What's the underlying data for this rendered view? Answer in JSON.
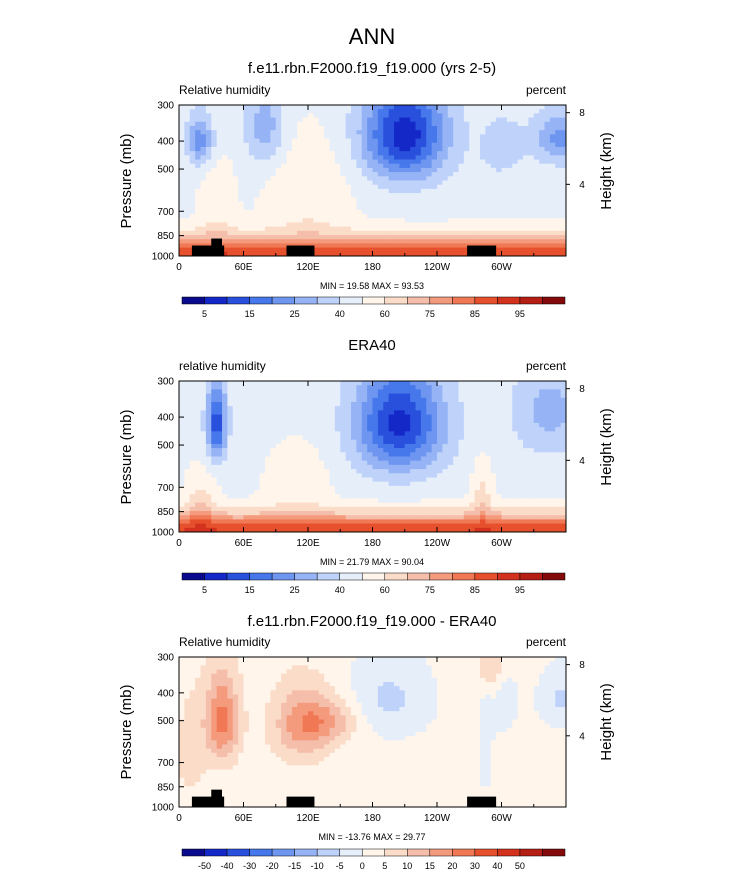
{
  "figure": {
    "title": "ANN"
  },
  "colormaps": {
    "absolute": {
      "colors": [
        "#0a0a8c",
        "#1428c8",
        "#2850dc",
        "#4678eb",
        "#6e96f0",
        "#96b4f5",
        "#bed2fa",
        "#e6eefa",
        "#fff5eb",
        "#fadcc8",
        "#f5beaa",
        "#f59b7d",
        "#f07855",
        "#e6502d",
        "#d2321e",
        "#b41e14",
        "#820a0a"
      ],
      "labels": [
        "5",
        "15",
        "25",
        "40",
        "60",
        "75",
        "85",
        "95"
      ],
      "label_boundaries": [
        1,
        3,
        5,
        7,
        9,
        11,
        13,
        15
      ]
    },
    "difference": {
      "colors": [
        "#0a0a8c",
        "#1428c8",
        "#2850dc",
        "#4678eb",
        "#6e96f0",
        "#96b4f5",
        "#bed2fa",
        "#e6eefa",
        "#fff5eb",
        "#fadcc8",
        "#f5beaa",
        "#f59b7d",
        "#f07855",
        "#e6502d",
        "#d2321e",
        "#b41e14",
        "#820a0a"
      ],
      "labels": [
        "-50",
        "-40",
        "-30",
        "-20",
        "-15",
        "-10",
        "-5",
        "0",
        "5",
        "10",
        "15",
        "20",
        "30",
        "40",
        "50"
      ],
      "label_boundaries": [
        1,
        2,
        3,
        4,
        5,
        6,
        7,
        8,
        9,
        10,
        11,
        12,
        13,
        14,
        15
      ]
    }
  },
  "chart_data": [
    {
      "type": "heatmap",
      "title": "f.e11.rbn.F2000.f19_f19.000 (yrs 2-5)",
      "left_label": "Relative humidity",
      "right_label": "percent",
      "ylabel": "Pressure (mb)",
      "y2label": "Height (km)",
      "x_ticks": [
        "0",
        "60E",
        "120E",
        "180",
        "120W",
        "60W"
      ],
      "x_tick_lon": [
        0,
        60,
        120,
        180,
        240,
        300
      ],
      "xlim": [
        0,
        360
      ],
      "y_ticks": [
        "300",
        "400",
        "500",
        "700",
        "850",
        "1000"
      ],
      "y_tick_p": [
        300,
        400,
        500,
        700,
        850,
        1000
      ],
      "ylim": [
        1000,
        300
      ],
      "y2_ticks": [
        "8",
        "4"
      ],
      "y2_tick_km": [
        8,
        4
      ],
      "stats": "MIN = 19.58  MAX = 93.53",
      "colormap": "absolute",
      "field": "model",
      "topography": true
    },
    {
      "type": "heatmap",
      "title": "ERA40",
      "left_label": "relative humidity",
      "right_label": "percent",
      "ylabel": "Pressure (mb)",
      "y2label": "Height (km)",
      "x_ticks": [
        "0",
        "60E",
        "120E",
        "180",
        "120W",
        "60W"
      ],
      "x_tick_lon": [
        0,
        60,
        120,
        180,
        240,
        300
      ],
      "xlim": [
        0,
        360
      ],
      "y_ticks": [
        "300",
        "400",
        "500",
        "700",
        "850",
        "1000"
      ],
      "y_tick_p": [
        300,
        400,
        500,
        700,
        850,
        1000
      ],
      "ylim": [
        1000,
        300
      ],
      "y2_ticks": [
        "8",
        "4"
      ],
      "y2_tick_km": [
        8,
        4
      ],
      "stats": "MIN = 21.79  MAX = 90.04",
      "colormap": "absolute",
      "field": "obs",
      "topography": false
    },
    {
      "type": "heatmap",
      "title": "f.e11.rbn.F2000.f19_f19.000 - ERA40",
      "left_label": "Relative humidity",
      "right_label": "percent",
      "ylabel": "Pressure (mb)",
      "y2label": "Height (km)",
      "x_ticks": [
        "0",
        "60E",
        "120E",
        "180",
        "120W",
        "60W"
      ],
      "x_tick_lon": [
        0,
        60,
        120,
        180,
        240,
        300
      ],
      "xlim": [
        0,
        360
      ],
      "y_ticks": [
        "300",
        "400",
        "500",
        "700",
        "850",
        "1000"
      ],
      "y_tick_p": [
        300,
        400,
        500,
        700,
        850,
        1000
      ],
      "ylim": [
        1000,
        300
      ],
      "y2_ticks": [
        "8",
        "4"
      ],
      "y2_tick_km": [
        8,
        4
      ],
      "stats": "MIN = -13.76  MAX = 29.77",
      "colormap": "difference",
      "field": "diff",
      "topography": true
    }
  ]
}
